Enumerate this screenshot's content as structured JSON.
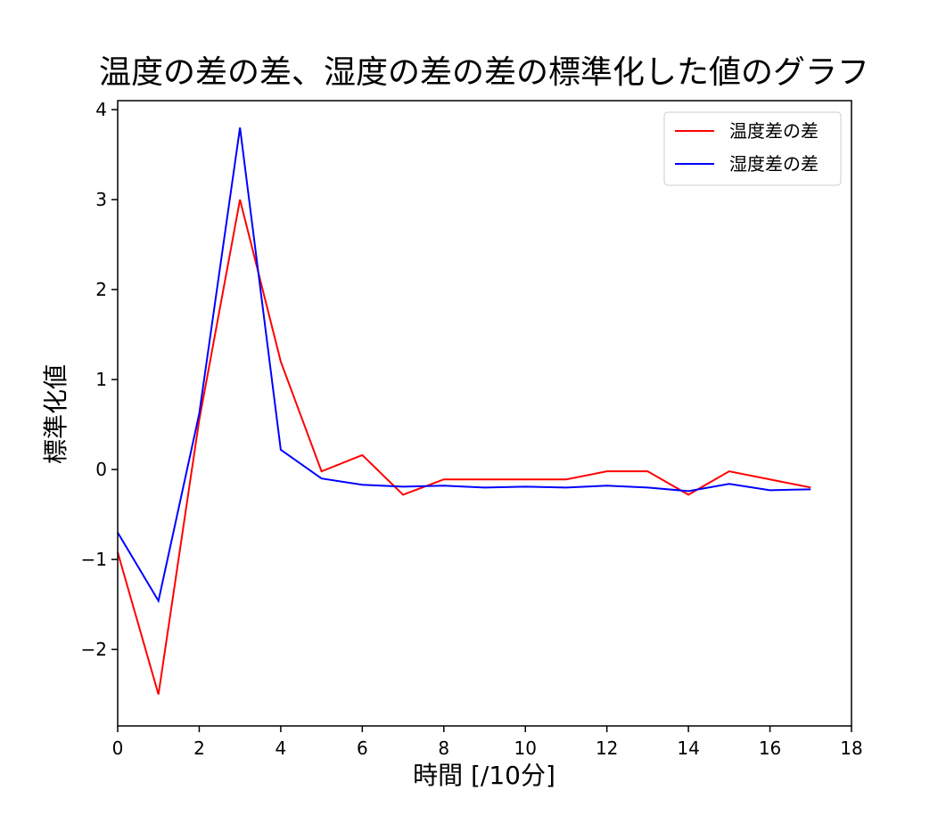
{
  "chart_data": {
    "type": "line",
    "title": "温度の差の差、湿度の差の差の標準化した値のグラフ",
    "xlabel": "時間 [/10分]",
    "ylabel": "標準化値",
    "xlim": [
      0,
      18
    ],
    "ylim": [
      -2.85,
      4.1
    ],
    "xticks": [
      0,
      2,
      4,
      6,
      8,
      10,
      12,
      14,
      16,
      18
    ],
    "yticks": [
      -2,
      -1,
      0,
      1,
      2,
      3,
      4
    ],
    "ytick_labels": [
      "−2",
      "−1",
      "0",
      "1",
      "2",
      "3",
      "4"
    ],
    "grid": false,
    "legend_position": "top-right",
    "x": [
      0,
      1,
      2,
      3,
      4,
      5,
      6,
      7,
      8,
      9,
      10,
      11,
      12,
      13,
      14,
      15,
      16,
      17
    ],
    "series": [
      {
        "name": "温度差の差",
        "color": "#ff0000",
        "values": [
          -0.92,
          -2.5,
          0.55,
          3.0,
          1.2,
          -0.02,
          0.16,
          -0.28,
          -0.11,
          -0.11,
          -0.11,
          -0.11,
          -0.02,
          -0.02,
          -0.28,
          -0.02,
          -0.11,
          -0.2
        ]
      },
      {
        "name": "湿度差の差",
        "color": "#0000ff",
        "values": [
          -0.7,
          -1.46,
          0.62,
          3.8,
          0.22,
          -0.1,
          -0.17,
          -0.19,
          -0.18,
          -0.2,
          -0.19,
          -0.2,
          -0.18,
          -0.2,
          -0.24,
          -0.16,
          -0.23,
          -0.22
        ]
      }
    ]
  }
}
